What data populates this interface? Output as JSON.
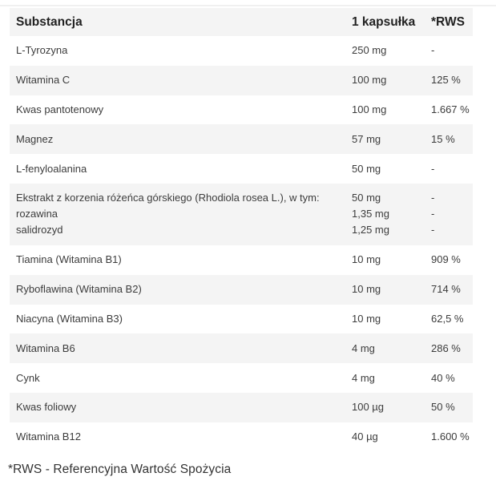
{
  "header": {
    "substance": "Substancja",
    "per_capsule": "1 kapsułka",
    "rws": "*RWS"
  },
  "rows": [
    {
      "name": [
        "L-Tyrozyna"
      ],
      "amount": [
        "250 mg"
      ],
      "rws": [
        "-"
      ]
    },
    {
      "name": [
        "Witamina C"
      ],
      "amount": [
        "100 mg"
      ],
      "rws": [
        "125 %"
      ]
    },
    {
      "name": [
        "Kwas pantotenowy"
      ],
      "amount": [
        "100 mg"
      ],
      "rws": [
        "1.667 %"
      ]
    },
    {
      "name": [
        "Magnez"
      ],
      "amount": [
        "57 mg"
      ],
      "rws": [
        "15 %"
      ]
    },
    {
      "name": [
        "L-fenyloalanina"
      ],
      "amount": [
        "50 mg"
      ],
      "rws": [
        "-"
      ]
    },
    {
      "name": [
        "Ekstrakt z korzenia różeńca górskiego (Rhodiola rosea L.), w tym:",
        "rozawina",
        "salidrozyd"
      ],
      "amount": [
        "50 mg",
        "1,35 mg",
        "1,25 mg"
      ],
      "rws": [
        "-",
        "-",
        "-"
      ]
    },
    {
      "name": [
        "Tiamina (Witamina B1)"
      ],
      "amount": [
        "10 mg"
      ],
      "rws": [
        "909 %"
      ]
    },
    {
      "name": [
        "Ryboflawina (Witamina B2)"
      ],
      "amount": [
        "10 mg"
      ],
      "rws": [
        "714 %"
      ]
    },
    {
      "name": [
        "Niacyna (Witamina B3)"
      ],
      "amount": [
        "10 mg"
      ],
      "rws": [
        "62,5 %"
      ]
    },
    {
      "name": [
        "Witamina B6"
      ],
      "amount": [
        "4 mg"
      ],
      "rws": [
        "286 %"
      ]
    },
    {
      "name": [
        "Cynk"
      ],
      "amount": [
        "4 mg"
      ],
      "rws": [
        "40 %"
      ]
    },
    {
      "name": [
        "Kwas foliowy"
      ],
      "amount": [
        "100 µg"
      ],
      "rws": [
        "50 %"
      ]
    },
    {
      "name": [
        "Witamina B12"
      ],
      "amount": [
        "40 µg"
      ],
      "rws": [
        "1.600 %"
      ]
    }
  ],
  "footnote": "*RWS - Referencyjna Wartość Spożycia"
}
